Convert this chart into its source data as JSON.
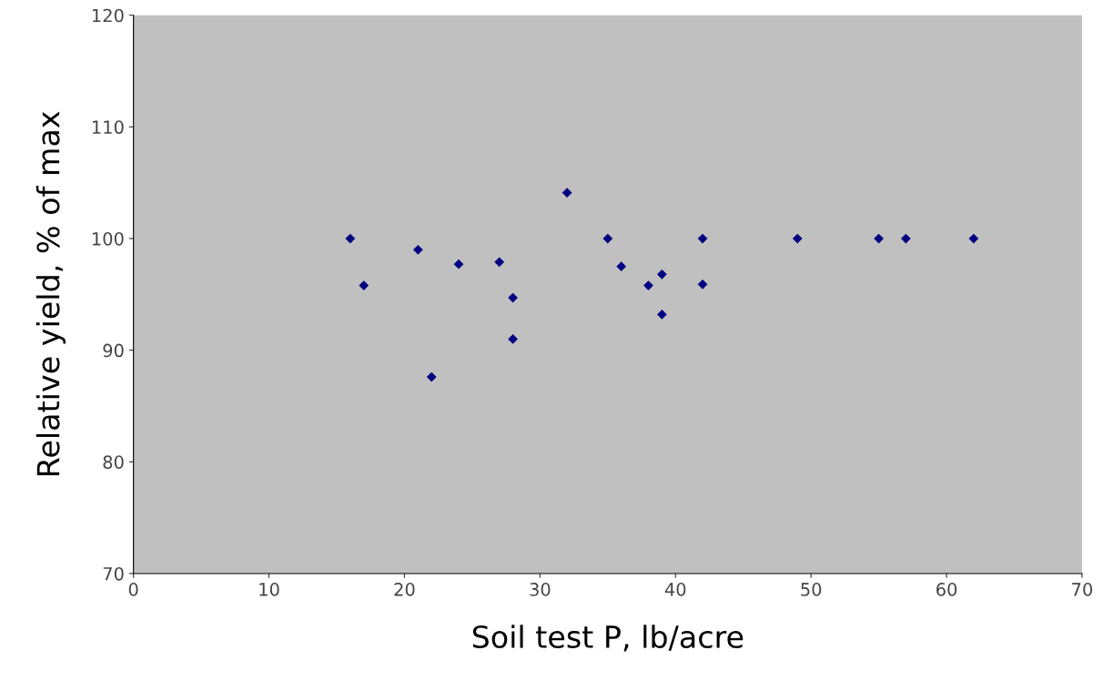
{
  "chart_data": {
    "type": "scatter",
    "xlabel": "Soil test P, lb/acre",
    "ylabel": "Relative yield, % of max",
    "x": [
      16,
      17,
      21,
      22,
      24,
      27,
      28,
      28,
      32,
      35,
      36,
      38,
      39,
      39,
      42,
      42,
      49,
      55,
      57,
      62
    ],
    "values": [
      100,
      95.8,
      99.0,
      87.6,
      97.7,
      97.9,
      94.7,
      91.0,
      104.1,
      100,
      97.5,
      95.8,
      96.8,
      93.2,
      100,
      95.9,
      100,
      100,
      100,
      100
    ],
    "color": "#000080",
    "marker": "diamond",
    "grid": false,
    "legend": false,
    "xlim": [
      0,
      70
    ],
    "xticks": [
      0,
      10,
      20,
      30,
      40,
      50,
      60,
      70
    ],
    "ylim": [
      70,
      120
    ],
    "yticks": [
      70,
      80,
      90,
      100,
      110,
      120
    ]
  }
}
